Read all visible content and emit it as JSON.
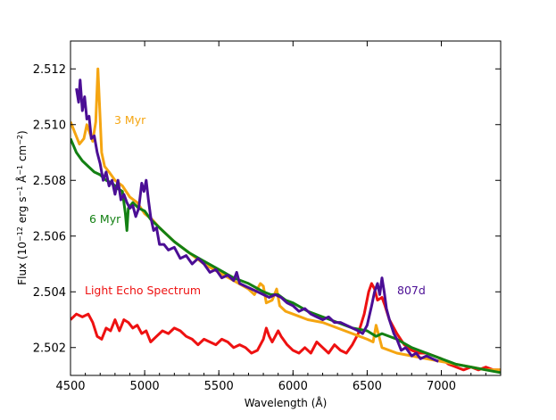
{
  "chart_data": {
    "type": "line",
    "title": "",
    "xlabel": "Wavelength (Å)",
    "ylabel": "Flux (10",
    "ylabel_exp1": "−12",
    "ylabel_mid": " erg s",
    "ylabel_exp2": "−1",
    "ylabel_mid2": " Å",
    "ylabel_exp3": "−1",
    "ylabel_mid3": " cm",
    "ylabel_exp4": "−2",
    "ylabel_end": ")",
    "xlim": [
      4500,
      7400
    ],
    "ylim": [
      2.501,
      2.513
    ],
    "xticks": [
      "4500",
      "5000",
      "5500",
      "6000",
      "6500",
      "7000"
    ],
    "yticks": [
      "2.502",
      "2.504",
      "2.506",
      "2.508",
      "2.510",
      "2.512"
    ],
    "grid": false,
    "series": [
      {
        "name": "Light Echo Spectrum",
        "color": "#ee1111",
        "points": [
          [
            4500,
            2.503
          ],
          [
            4540,
            2.5032
          ],
          [
            4580,
            2.5031
          ],
          [
            4620,
            2.5032
          ],
          [
            4650,
            2.5029
          ],
          [
            4680,
            2.5024
          ],
          [
            4710,
            2.5023
          ],
          [
            4740,
            2.5027
          ],
          [
            4770,
            2.5026
          ],
          [
            4800,
            2.503
          ],
          [
            4830,
            2.5026
          ],
          [
            4860,
            2.503
          ],
          [
            4890,
            2.5029
          ],
          [
            4920,
            2.5027
          ],
          [
            4950,
            2.5028
          ],
          [
            4980,
            2.5025
          ],
          [
            5010,
            2.5026
          ],
          [
            5040,
            2.5022
          ],
          [
            5080,
            2.5024
          ],
          [
            5120,
            2.5026
          ],
          [
            5160,
            2.5025
          ],
          [
            5200,
            2.5027
          ],
          [
            5240,
            2.5026
          ],
          [
            5280,
            2.5024
          ],
          [
            5320,
            2.5023
          ],
          [
            5360,
            2.5021
          ],
          [
            5400,
            2.5023
          ],
          [
            5440,
            2.5022
          ],
          [
            5480,
            2.5021
          ],
          [
            5520,
            2.5023
          ],
          [
            5560,
            2.5022
          ],
          [
            5600,
            2.502
          ],
          [
            5640,
            2.5021
          ],
          [
            5680,
            2.502
          ],
          [
            5720,
            2.5018
          ],
          [
            5760,
            2.5019
          ],
          [
            5800,
            2.5023
          ],
          [
            5820,
            2.5027
          ],
          [
            5840,
            2.5024
          ],
          [
            5860,
            2.5022
          ],
          [
            5880,
            2.5024
          ],
          [
            5900,
            2.5026
          ],
          [
            5920,
            2.5024
          ],
          [
            5960,
            2.5021
          ],
          [
            6000,
            2.5019
          ],
          [
            6040,
            2.5018
          ],
          [
            6080,
            2.502
          ],
          [
            6120,
            2.5018
          ],
          [
            6160,
            2.5022
          ],
          [
            6200,
            2.502
          ],
          [
            6240,
            2.5018
          ],
          [
            6280,
            2.5021
          ],
          [
            6320,
            2.5019
          ],
          [
            6360,
            2.5018
          ],
          [
            6400,
            2.5021
          ],
          [
            6440,
            2.5025
          ],
          [
            6480,
            2.5032
          ],
          [
            6510,
            2.504
          ],
          [
            6530,
            2.5043
          ],
          [
            6550,
            2.5041
          ],
          [
            6570,
            2.5037
          ],
          [
            6600,
            2.5038
          ],
          [
            6620,
            2.5035
          ],
          [
            6650,
            2.503
          ],
          [
            6700,
            2.5025
          ],
          [
            6750,
            2.5021
          ],
          [
            6800,
            2.5019
          ],
          [
            6850,
            2.5018
          ],
          [
            6900,
            2.5018
          ],
          [
            6950,
            2.5017
          ],
          [
            7000,
            2.5016
          ],
          [
            7050,
            2.5014
          ],
          [
            7100,
            2.5013
          ],
          [
            7150,
            2.5012
          ],
          [
            7200,
            2.5013
          ],
          [
            7250,
            2.5012
          ],
          [
            7300,
            2.5013
          ],
          [
            7350,
            2.5012
          ],
          [
            7400,
            2.5012
          ]
        ]
      },
      {
        "name": "3 Myr",
        "color": "#f5a511",
        "points": [
          [
            4500,
            2.5101
          ],
          [
            4530,
            2.5097
          ],
          [
            4560,
            2.5093
          ],
          [
            4590,
            2.5095
          ],
          [
            4610,
            2.51
          ],
          [
            4630,
            2.5097
          ],
          [
            4650,
            2.5094
          ],
          [
            4670,
            2.5101
          ],
          [
            4685,
            2.512
          ],
          [
            4695,
            2.5108
          ],
          [
            4710,
            2.509
          ],
          [
            4730,
            2.5085
          ],
          [
            4760,
            2.5083
          ],
          [
            4800,
            2.508
          ],
          [
            4850,
            2.5078
          ],
          [
            4900,
            2.5074
          ],
          [
            4950,
            2.5072
          ],
          [
            5000,
            2.5068
          ],
          [
            5050,
            2.5066
          ],
          [
            5100,
            2.5063
          ],
          [
            5200,
            2.5058
          ],
          [
            5300,
            2.5054
          ],
          [
            5400,
            2.505
          ],
          [
            5500,
            2.5047
          ],
          [
            5600,
            2.5044
          ],
          [
            5700,
            2.5041
          ],
          [
            5740,
            2.5039
          ],
          [
            5780,
            2.5043
          ],
          [
            5800,
            2.5042
          ],
          [
            5820,
            2.5036
          ],
          [
            5860,
            2.5037
          ],
          [
            5890,
            2.5041
          ],
          [
            5910,
            2.5035
          ],
          [
            5950,
            2.5033
          ],
          [
            6000,
            2.5032
          ],
          [
            6100,
            2.503
          ],
          [
            6200,
            2.5029
          ],
          [
            6300,
            2.5027
          ],
          [
            6400,
            2.5025
          ],
          [
            6500,
            2.5023
          ],
          [
            6540,
            2.5022
          ],
          [
            6560,
            2.5028
          ],
          [
            6575,
            2.5025
          ],
          [
            6600,
            2.502
          ],
          [
            6700,
            2.5018
          ],
          [
            6800,
            2.5017
          ],
          [
            6900,
            2.5016
          ],
          [
            7000,
            2.5015
          ],
          [
            7100,
            2.5014
          ],
          [
            7200,
            2.5013
          ],
          [
            7300,
            2.5012
          ],
          [
            7400,
            2.5012
          ]
        ]
      },
      {
        "name": "6 Myr",
        "color": "#138013",
        "points": [
          [
            4500,
            2.5095
          ],
          [
            4540,
            2.509
          ],
          [
            4580,
            2.5087
          ],
          [
            4620,
            2.5085
          ],
          [
            4660,
            2.5083
          ],
          [
            4700,
            2.5082
          ],
          [
            4740,
            2.508
          ],
          [
            4780,
            2.5079
          ],
          [
            4820,
            2.5077
          ],
          [
            4850,
            2.5076
          ],
          [
            4870,
            2.5068
          ],
          [
            4880,
            2.5062
          ],
          [
            4890,
            2.507
          ],
          [
            4920,
            2.5072
          ],
          [
            4960,
            2.507
          ],
          [
            5000,
            2.5069
          ],
          [
            5040,
            2.5066
          ],
          [
            5080,
            2.5064
          ],
          [
            5120,
            2.5062
          ],
          [
            5160,
            2.506
          ],
          [
            5200,
            2.5058
          ],
          [
            5300,
            2.5054
          ],
          [
            5400,
            2.5051
          ],
          [
            5500,
            2.5048
          ],
          [
            5600,
            2.5045
          ],
          [
            5700,
            2.5043
          ],
          [
            5800,
            2.504
          ],
          [
            5850,
            2.5039
          ],
          [
            5900,
            2.5039
          ],
          [
            5950,
            2.5037
          ],
          [
            6000,
            2.5036
          ],
          [
            6100,
            2.5033
          ],
          [
            6200,
            2.5031
          ],
          [
            6300,
            2.5029
          ],
          [
            6400,
            2.5027
          ],
          [
            6500,
            2.5026
          ],
          [
            6560,
            2.5024
          ],
          [
            6600,
            2.5025
          ],
          [
            6700,
            2.5023
          ],
          [
            6800,
            2.502
          ],
          [
            6900,
            2.5018
          ],
          [
            7000,
            2.5016
          ],
          [
            7100,
            2.5014
          ],
          [
            7200,
            2.5013
          ],
          [
            7300,
            2.5012
          ],
          [
            7400,
            2.5011
          ]
        ]
      },
      {
        "name": "807d",
        "color": "#4b0e95",
        "points": [
          [
            4540,
            2.5113
          ],
          [
            4555,
            2.5108
          ],
          [
            4565,
            2.5116
          ],
          [
            4580,
            2.5105
          ],
          [
            4595,
            2.511
          ],
          [
            4610,
            2.5102
          ],
          [
            4625,
            2.5103
          ],
          [
            4640,
            2.5095
          ],
          [
            4660,
            2.5096
          ],
          [
            4680,
            2.509
          ],
          [
            4700,
            2.5086
          ],
          [
            4720,
            2.508
          ],
          [
            4740,
            2.5083
          ],
          [
            4760,
            2.5078
          ],
          [
            4780,
            2.508
          ],
          [
            4800,
            2.5075
          ],
          [
            4820,
            2.508
          ],
          [
            4840,
            2.5073
          ],
          [
            4860,
            2.5075
          ],
          [
            4880,
            2.5072
          ],
          [
            4900,
            2.507
          ],
          [
            4920,
            2.5071
          ],
          [
            4940,
            2.5067
          ],
          [
            4960,
            2.507
          ],
          [
            4980,
            2.5079
          ],
          [
            4995,
            2.5076
          ],
          [
            5010,
            2.508
          ],
          [
            5025,
            2.5073
          ],
          [
            5040,
            2.5067
          ],
          [
            5060,
            2.5062
          ],
          [
            5080,
            2.5063
          ],
          [
            5100,
            2.5057
          ],
          [
            5130,
            2.5057
          ],
          [
            5160,
            2.5055
          ],
          [
            5200,
            2.5056
          ],
          [
            5240,
            2.5052
          ],
          [
            5280,
            2.5053
          ],
          [
            5320,
            2.505
          ],
          [
            5360,
            2.5052
          ],
          [
            5400,
            2.505
          ],
          [
            5440,
            2.5047
          ],
          [
            5480,
            2.5048
          ],
          [
            5520,
            2.5045
          ],
          [
            5560,
            2.5046
          ],
          [
            5600,
            2.5044
          ],
          [
            5620,
            2.5047
          ],
          [
            5640,
            2.5043
          ],
          [
            5680,
            2.5042
          ],
          [
            5720,
            2.5041
          ],
          [
            5760,
            2.504
          ],
          [
            5800,
            2.5039
          ],
          [
            5840,
            2.5038
          ],
          [
            5880,
            2.5039
          ],
          [
            5920,
            2.5038
          ],
          [
            5960,
            2.5036
          ],
          [
            6000,
            2.5035
          ],
          [
            6040,
            2.5033
          ],
          [
            6080,
            2.5034
          ],
          [
            6120,
            2.5032
          ],
          [
            6160,
            2.5031
          ],
          [
            6200,
            2.503
          ],
          [
            6240,
            2.5031
          ],
          [
            6280,
            2.5029
          ],
          [
            6320,
            2.5029
          ],
          [
            6360,
            2.5028
          ],
          [
            6400,
            2.5027
          ],
          [
            6440,
            2.5026
          ],
          [
            6470,
            2.5025
          ],
          [
            6500,
            2.5028
          ],
          [
            6530,
            2.5035
          ],
          [
            6550,
            2.504
          ],
          [
            6570,
            2.5043
          ],
          [
            6585,
            2.5039
          ],
          [
            6600,
            2.5045
          ],
          [
            6615,
            2.504
          ],
          [
            6630,
            2.5034
          ],
          [
            6650,
            2.503
          ],
          [
            6680,
            2.5025
          ],
          [
            6700,
            2.5023
          ],
          [
            6730,
            2.5019
          ],
          [
            6760,
            2.502
          ],
          [
            6800,
            2.5017
          ],
          [
            6830,
            2.5018
          ],
          [
            6860,
            2.5016
          ],
          [
            6900,
            2.5017
          ],
          [
            6940,
            2.5016
          ],
          [
            6980,
            2.5015
          ]
        ]
      }
    ]
  }
}
